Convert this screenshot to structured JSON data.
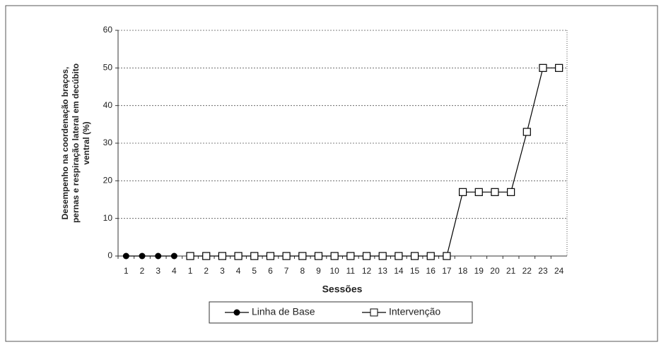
{
  "chart_data": {
    "type": "line",
    "ylabel": [
      "Desempenho na coordenação braços,",
      "pernas e respiração lateral em decúbito",
      "ventral  (%)"
    ],
    "xlabel": "Sessões",
    "categories": [
      "1",
      "2",
      "3",
      "4",
      "1",
      "2",
      "3",
      "4",
      "5",
      "6",
      "7",
      "8",
      "9",
      "10",
      "11",
      "12",
      "13",
      "14",
      "15",
      "16",
      "17",
      "18",
      "19",
      "20",
      "21",
      "22",
      "23",
      "24"
    ],
    "series": [
      {
        "name": "Linha de Base",
        "color": "#000000",
        "marker": "circle",
        "values": [
          0,
          0,
          0,
          0,
          null,
          null,
          null,
          null,
          null,
          null,
          null,
          null,
          null,
          null,
          null,
          null,
          null,
          null,
          null,
          null,
          null,
          null,
          null,
          null,
          null,
          null,
          null,
          null
        ]
      },
      {
        "name": "Intervenção",
        "color": "#000000",
        "marker": "square",
        "values": [
          null,
          null,
          null,
          null,
          0,
          0,
          0,
          0,
          0,
          0,
          0,
          0,
          0,
          0,
          0,
          0,
          0,
          0,
          0,
          0,
          0,
          17,
          17,
          17,
          17,
          33,
          50,
          50
        ]
      }
    ],
    "ylim": [
      0,
      60
    ],
    "yticks": [
      0,
      10,
      20,
      30,
      40,
      50,
      60
    ],
    "grid": true,
    "legend": "bottom"
  }
}
